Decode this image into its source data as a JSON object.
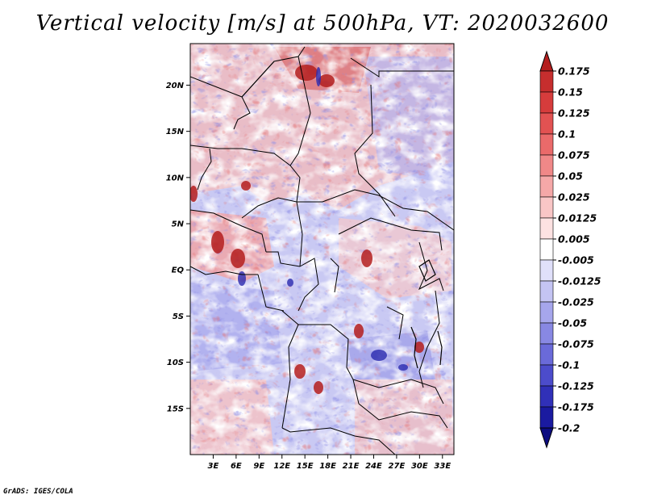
{
  "title": "Vertical velocity [m/s] at 500hPa, VT: 2020032600",
  "credit": "GrADS: IGES/COLA",
  "map": {
    "lat_labels": [
      "20N",
      "15N",
      "10N",
      "5N",
      "EQ",
      "5S",
      "10S",
      "15S"
    ],
    "lat_values": [
      20,
      15,
      10,
      5,
      0,
      -5,
      -10,
      -15
    ],
    "lon_labels": [
      "3E",
      "6E",
      "9E",
      "12E",
      "15E",
      "18E",
      "21E",
      "24E",
      "27E",
      "30E",
      "33E"
    ],
    "lon_values": [
      3,
      6,
      9,
      12,
      15,
      18,
      21,
      24,
      27,
      30,
      33
    ],
    "lat_range": [
      -20,
      24.5
    ],
    "lon_range": [
      0,
      34.5
    ]
  },
  "colorbar": {
    "levels": [
      "0.175",
      "0.15",
      "0.125",
      "0.1",
      "0.075",
      "0.05",
      "0.025",
      "0.0125",
      "0.005",
      "-0.005",
      "-0.0125",
      "-0.025",
      "-0.05",
      "-0.075",
      "-0.1",
      "-0.125",
      "-0.175",
      "-0.2"
    ],
    "colors": [
      "#b41e1e",
      "#c62e2e",
      "#d63c3c",
      "#e25252",
      "#ea6a6a",
      "#f08888",
      "#f5a8a8",
      "#f9c6c6",
      "#fde2e2",
      "#ffffff",
      "#e0e0fa",
      "#c4c4f3",
      "#a6a6ec",
      "#8888e3",
      "#6a6ad9",
      "#4c4ccb",
      "#3030b8",
      "#1a1aa0",
      "#0c0c80"
    ]
  }
}
